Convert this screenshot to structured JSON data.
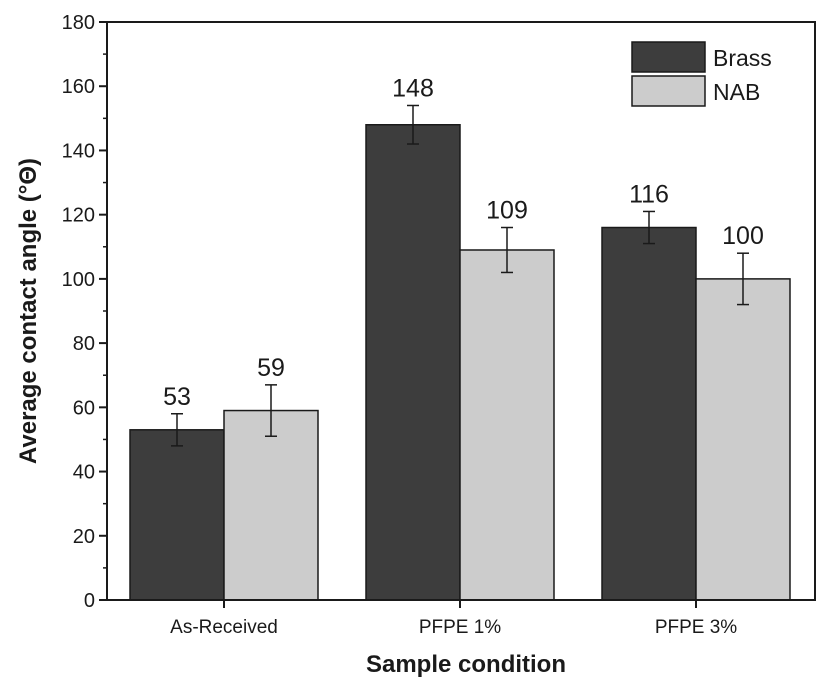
{
  "chart_data": {
    "type": "bar",
    "title": "",
    "xlabel": "Sample condition",
    "ylabel": "Average contact angle (°Θ)",
    "categories": [
      "As-Received",
      "PFPE 1%",
      "PFPE 3%"
    ],
    "series": [
      {
        "name": "Brass",
        "color": "#3d3d3d",
        "values": [
          53,
          148,
          116
        ],
        "errors": [
          5,
          6,
          5
        ],
        "labels": [
          "53",
          "148",
          "116"
        ]
      },
      {
        "name": "NAB",
        "color": "#cccccc",
        "values": [
          59,
          109,
          100
        ],
        "errors": [
          8,
          7,
          8
        ],
        "labels": [
          "59",
          "109",
          "100"
        ]
      }
    ],
    "ylim": [
      0,
      180
    ],
    "yticks": [
      0,
      20,
      40,
      60,
      80,
      100,
      120,
      140,
      160,
      180
    ],
    "grid": false,
    "legend_position": "top-right"
  }
}
